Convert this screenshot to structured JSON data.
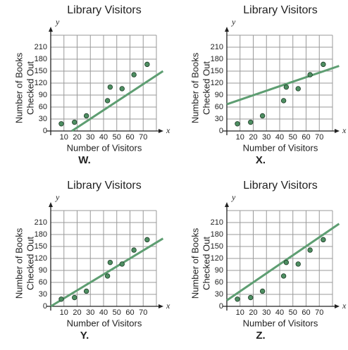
{
  "chart_data": [
    {
      "type": "scatter",
      "title": "Library Visitors",
      "x_label": "Number of Visitors",
      "y_label": [
        "Number of Books",
        "Checked Out"
      ],
      "x_axis_letter": "x",
      "y_axis_letter": "y",
      "caption": "W.",
      "x": [
        8,
        18,
        27,
        43,
        45,
        54,
        63,
        73
      ],
      "values": [
        18,
        22,
        38,
        76,
        110,
        106,
        141,
        167
      ],
      "color": "#4e8f62",
      "trend_line": {
        "x": [
          16,
          85
        ],
        "values": [
          0,
          150
        ],
        "color": "#5e9e72"
      },
      "xlim": [
        0,
        80
      ],
      "ylim": [
        0,
        240
      ],
      "xticks": [
        10,
        20,
        30,
        40,
        50,
        60,
        70
      ],
      "yticks": [
        0,
        30,
        60,
        90,
        120,
        150,
        180,
        210
      ],
      "grid": true
    },
    {
      "type": "scatter",
      "title": "Library Visitors",
      "x_label": "Number of Visitors",
      "y_label": [
        "Number of Books",
        "Checked Out"
      ],
      "x_axis_letter": "x",
      "y_axis_letter": "y",
      "caption": "X.",
      "x": [
        8,
        18,
        27,
        43,
        45,
        54,
        63,
        73
      ],
      "values": [
        18,
        22,
        38,
        76,
        110,
        106,
        141,
        167
      ],
      "color": "#4e8f62",
      "trend_line": {
        "x": [
          0,
          85
        ],
        "values": [
          67,
          163
        ],
        "color": "#5e9e72"
      },
      "xlim": [
        0,
        80
      ],
      "ylim": [
        0,
        240
      ],
      "xticks": [
        10,
        20,
        30,
        40,
        50,
        60,
        70
      ],
      "yticks": [
        0,
        30,
        60,
        90,
        120,
        150,
        180,
        210
      ],
      "grid": true
    },
    {
      "type": "scatter",
      "title": "Library Visitors",
      "x_label": "Number of Visitors",
      "y_label": [
        "Number of Books",
        "Checked Out"
      ],
      "x_axis_letter": "x",
      "y_axis_letter": "y",
      "caption": "Y.",
      "x": [
        8,
        18,
        27,
        43,
        45,
        54,
        63,
        73
      ],
      "values": [
        18,
        22,
        38,
        76,
        110,
        106,
        141,
        167
      ],
      "color": "#4e8f62",
      "trend_line": {
        "x": [
          0,
          85
        ],
        "values": [
          0,
          170
        ],
        "color": "#5e9e72"
      },
      "xlim": [
        0,
        80
      ],
      "ylim": [
        0,
        240
      ],
      "xticks": [
        10,
        20,
        30,
        40,
        50,
        60,
        70
      ],
      "yticks": [
        0,
        30,
        60,
        90,
        120,
        150,
        180,
        210
      ],
      "grid": true
    },
    {
      "type": "scatter",
      "title": "Library Visitors",
      "x_label": "Number of Visitors",
      "y_label": [
        "Number of Books",
        "Checked Out"
      ],
      "x_axis_letter": "x",
      "y_axis_letter": "y",
      "caption": "Z.",
      "x": [
        8,
        18,
        27,
        43,
        45,
        54,
        63,
        73
      ],
      "values": [
        18,
        22,
        38,
        76,
        110,
        106,
        141,
        167
      ],
      "color": "#4e8f62",
      "trend_line": {
        "x": [
          0,
          85
        ],
        "values": [
          15,
          207
        ],
        "color": "#5e9e72"
      },
      "xlim": [
        0,
        80
      ],
      "ylim": [
        0,
        240
      ],
      "xticks": [
        10,
        20,
        30,
        40,
        50,
        60,
        70
      ],
      "yticks": [
        0,
        30,
        60,
        90,
        120,
        150,
        180,
        210
      ],
      "grid": true
    }
  ]
}
